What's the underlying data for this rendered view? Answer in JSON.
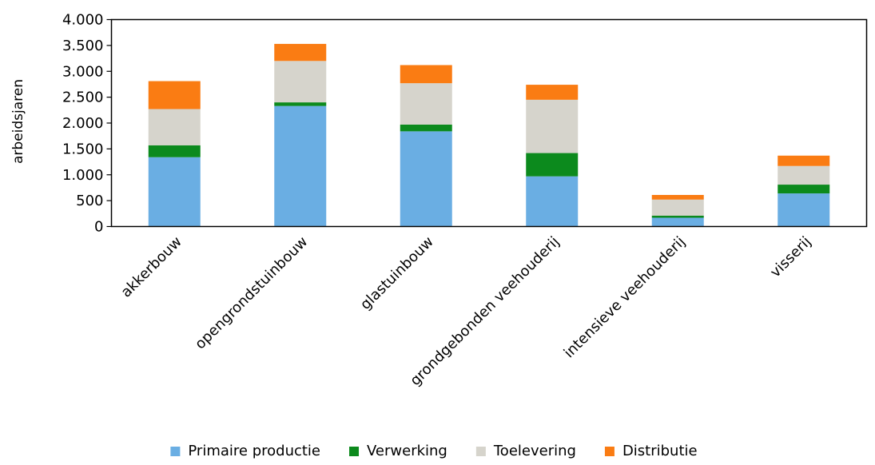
{
  "chart_data": {
    "type": "bar",
    "stacked": true,
    "title": "",
    "xlabel": "",
    "ylabel": "arbeidsjaren",
    "ylim": [
      0,
      4000
    ],
    "yticks": [
      0,
      500,
      1000,
      1500,
      2000,
      2500,
      3000,
      3500,
      4000
    ],
    "ytick_labels": [
      "0",
      "500",
      "1.000",
      "1.500",
      "2.000",
      "2.500",
      "3.000",
      "3.500",
      "4.000"
    ],
    "grid": false,
    "legend_position": "bottom",
    "categories": [
      "akkerbouw",
      "opengrondstuinbouw",
      "glastuinbouw",
      "grondgebonden veehouderij",
      "intensieve veehouderij",
      "visserij"
    ],
    "series": [
      {
        "name": "Primaire productie",
        "color": "#6aaee3",
        "values": [
          1340,
          2330,
          1840,
          970,
          170,
          640
        ]
      },
      {
        "name": "Verwerking",
        "color": "#0c8a1d",
        "values": [
          230,
          70,
          130,
          450,
          40,
          170
        ]
      },
      {
        "name": "Toelevering",
        "color": "#d6d4cc",
        "values": [
          700,
          800,
          800,
          1030,
          310,
          360
        ]
      },
      {
        "name": "Distributie",
        "color": "#fa7c13",
        "values": [
          540,
          330,
          350,
          290,
          90,
          200
        ]
      }
    ]
  }
}
